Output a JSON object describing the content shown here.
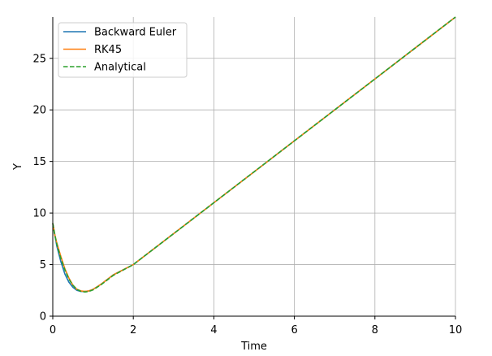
{
  "chart_data": {
    "type": "line",
    "xlabel": "Time",
    "ylabel": "Y",
    "xlim": [
      0,
      10
    ],
    "ylim": [
      0,
      29
    ],
    "x_ticks": [
      0,
      2,
      4,
      6,
      8,
      10
    ],
    "y_ticks": [
      0,
      5,
      10,
      15,
      20,
      25
    ],
    "grid": true,
    "legend_position": "top-left",
    "series": [
      {
        "name": "Backward Euler",
        "color": "#1f77b4",
        "style": "solid",
        "x": [
          0,
          0.1,
          0.2,
          0.3,
          0.4,
          0.5,
          0.6,
          0.7,
          0.8,
          0.9,
          1.0,
          1.2,
          1.5,
          2,
          3,
          4,
          5,
          6,
          7,
          8,
          9,
          10
        ],
        "y": [
          9,
          6.8,
          5.3,
          4.1,
          3.3,
          2.8,
          2.5,
          2.4,
          2.4,
          2.45,
          2.6,
          3.1,
          4.0,
          5.0,
          8.0,
          11.0,
          14.0,
          17.0,
          20.0,
          23.0,
          26.0,
          29.0
        ]
      },
      {
        "name": "RK45",
        "color": "#ff7f0e",
        "style": "solid",
        "x": [
          0,
          0.05,
          0.1,
          0.2,
          0.3,
          0.4,
          0.5,
          0.6,
          0.7,
          0.8,
          0.9,
          1.0,
          1.2,
          1.5,
          2,
          3,
          4,
          5,
          6,
          7,
          8,
          9,
          10
        ],
        "y": [
          9,
          7.9,
          7.1,
          5.8,
          4.6,
          3.7,
          3.0,
          2.6,
          2.45,
          2.4,
          2.45,
          2.6,
          3.1,
          4.0,
          5.0,
          8.0,
          11.0,
          14.0,
          17.0,
          20.0,
          23.0,
          26.0,
          29.0
        ]
      },
      {
        "name": "Analytical",
        "color": "#2ca02c",
        "style": "dashed",
        "x": [
          0,
          0.05,
          0.1,
          0.2,
          0.3,
          0.4,
          0.5,
          0.6,
          0.7,
          0.8,
          0.9,
          1.0,
          1.2,
          1.5,
          2,
          3,
          4,
          5,
          6,
          7,
          8,
          9,
          10
        ],
        "y": [
          9,
          7.9,
          7.0,
          5.6,
          4.5,
          3.6,
          3.0,
          2.6,
          2.4,
          2.35,
          2.4,
          2.55,
          3.05,
          3.95,
          5.0,
          8.0,
          11.0,
          14.0,
          17.0,
          20.0,
          23.0,
          26.0,
          29.0
        ]
      }
    ]
  }
}
